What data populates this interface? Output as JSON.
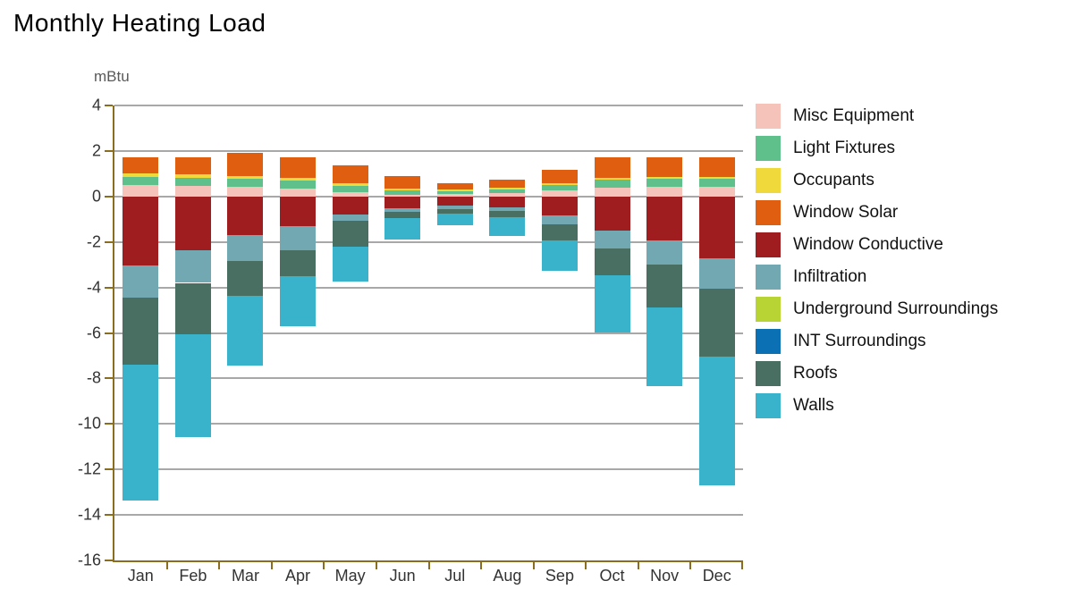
{
  "title": "Monthly Heating Load",
  "y_axis": {
    "unit": "mBtu",
    "ticks": [
      4,
      2,
      0,
      -2,
      -4,
      -6,
      -8,
      -10,
      -12,
      -14,
      -16
    ]
  },
  "colors": {
    "axis": "#8a6d1e",
    "gridline": "#a8a8a8",
    "misc_equipment": "#f5c3ba",
    "light_fixtures": "#5fc08c",
    "occupants": "#f0da3b",
    "window_solar": "#df5e10",
    "window_conductive": "#9f1c1f",
    "infiltration": "#72a8b1",
    "underground_surroundings": "#b8d334",
    "int_surroundings": "#0c70b5",
    "roofs": "#496e62",
    "walls": "#39b3cb"
  },
  "chart_data": {
    "type": "bar",
    "stacked": true,
    "title": "Monthly Heating Load",
    "ylabel": "mBtu",
    "ylim": [
      -16,
      4
    ],
    "grid": true,
    "legend_position": "right",
    "categories": [
      "Jan",
      "Feb",
      "Mar",
      "Apr",
      "May",
      "Jun",
      "Jul",
      "Aug",
      "Sep",
      "Oct",
      "Nov",
      "Dec"
    ],
    "series": [
      {
        "name": "Misc Equipment",
        "color": "#f5c3ba",
        "values": [
          0.5,
          0.47,
          0.41,
          0.36,
          0.19,
          0.08,
          0.12,
          0.16,
          0.27,
          0.39,
          0.43,
          0.43
        ]
      },
      {
        "name": "Light Fixtures",
        "color": "#5fc08c",
        "values": [
          0.37,
          0.36,
          0.36,
          0.34,
          0.29,
          0.17,
          0.11,
          0.13,
          0.23,
          0.33,
          0.34,
          0.34
        ]
      },
      {
        "name": "Occupants",
        "color": "#f0da3b",
        "values": [
          0.14,
          0.14,
          0.14,
          0.13,
          0.11,
          0.1,
          0.09,
          0.11,
          0.1,
          0.11,
          0.1,
          0.1
        ]
      },
      {
        "name": "Window Solar",
        "color": "#df5e10",
        "values": [
          0.7,
          0.74,
          1.0,
          0.88,
          0.77,
          0.53,
          0.27,
          0.32,
          0.57,
          0.88,
          0.84,
          0.84
        ]
      },
      {
        "name": "Window Conductive",
        "color": "#9f1c1f",
        "values": [
          -3.05,
          -2.35,
          -1.68,
          -1.32,
          -0.78,
          -0.51,
          -0.4,
          -0.47,
          -0.82,
          -1.49,
          -1.92,
          -2.72
        ]
      },
      {
        "name": "Infiltration",
        "color": "#72a8b1",
        "values": [
          -1.4,
          -1.45,
          -1.16,
          -1.06,
          -0.27,
          -0.18,
          -0.16,
          -0.17,
          -0.4,
          -0.78,
          -1.06,
          -1.32
        ]
      },
      {
        "name": "Underground Surroundings",
        "color": "#b8d334",
        "values": [
          0,
          0,
          0,
          0,
          0,
          0,
          0,
          0,
          0,
          0,
          0,
          0
        ]
      },
      {
        "name": "INT Surroundings",
        "color": "#0c70b5",
        "values": [
          0,
          0,
          0,
          0,
          0,
          0,
          0,
          0,
          0,
          0,
          0,
          0
        ]
      },
      {
        "name": "Roofs",
        "color": "#496e62",
        "values": [
          -2.95,
          -2.27,
          -1.52,
          -1.12,
          -1.16,
          -0.27,
          -0.2,
          -0.29,
          -0.7,
          -1.18,
          -1.9,
          -3.01
        ]
      },
      {
        "name": "Walls",
        "color": "#39b3cb",
        "values": [
          -5.95,
          -4.49,
          -3.06,
          -2.2,
          -1.52,
          -0.93,
          -0.51,
          -0.8,
          -1.33,
          -2.55,
          -3.47,
          -5.65
        ]
      }
    ]
  }
}
